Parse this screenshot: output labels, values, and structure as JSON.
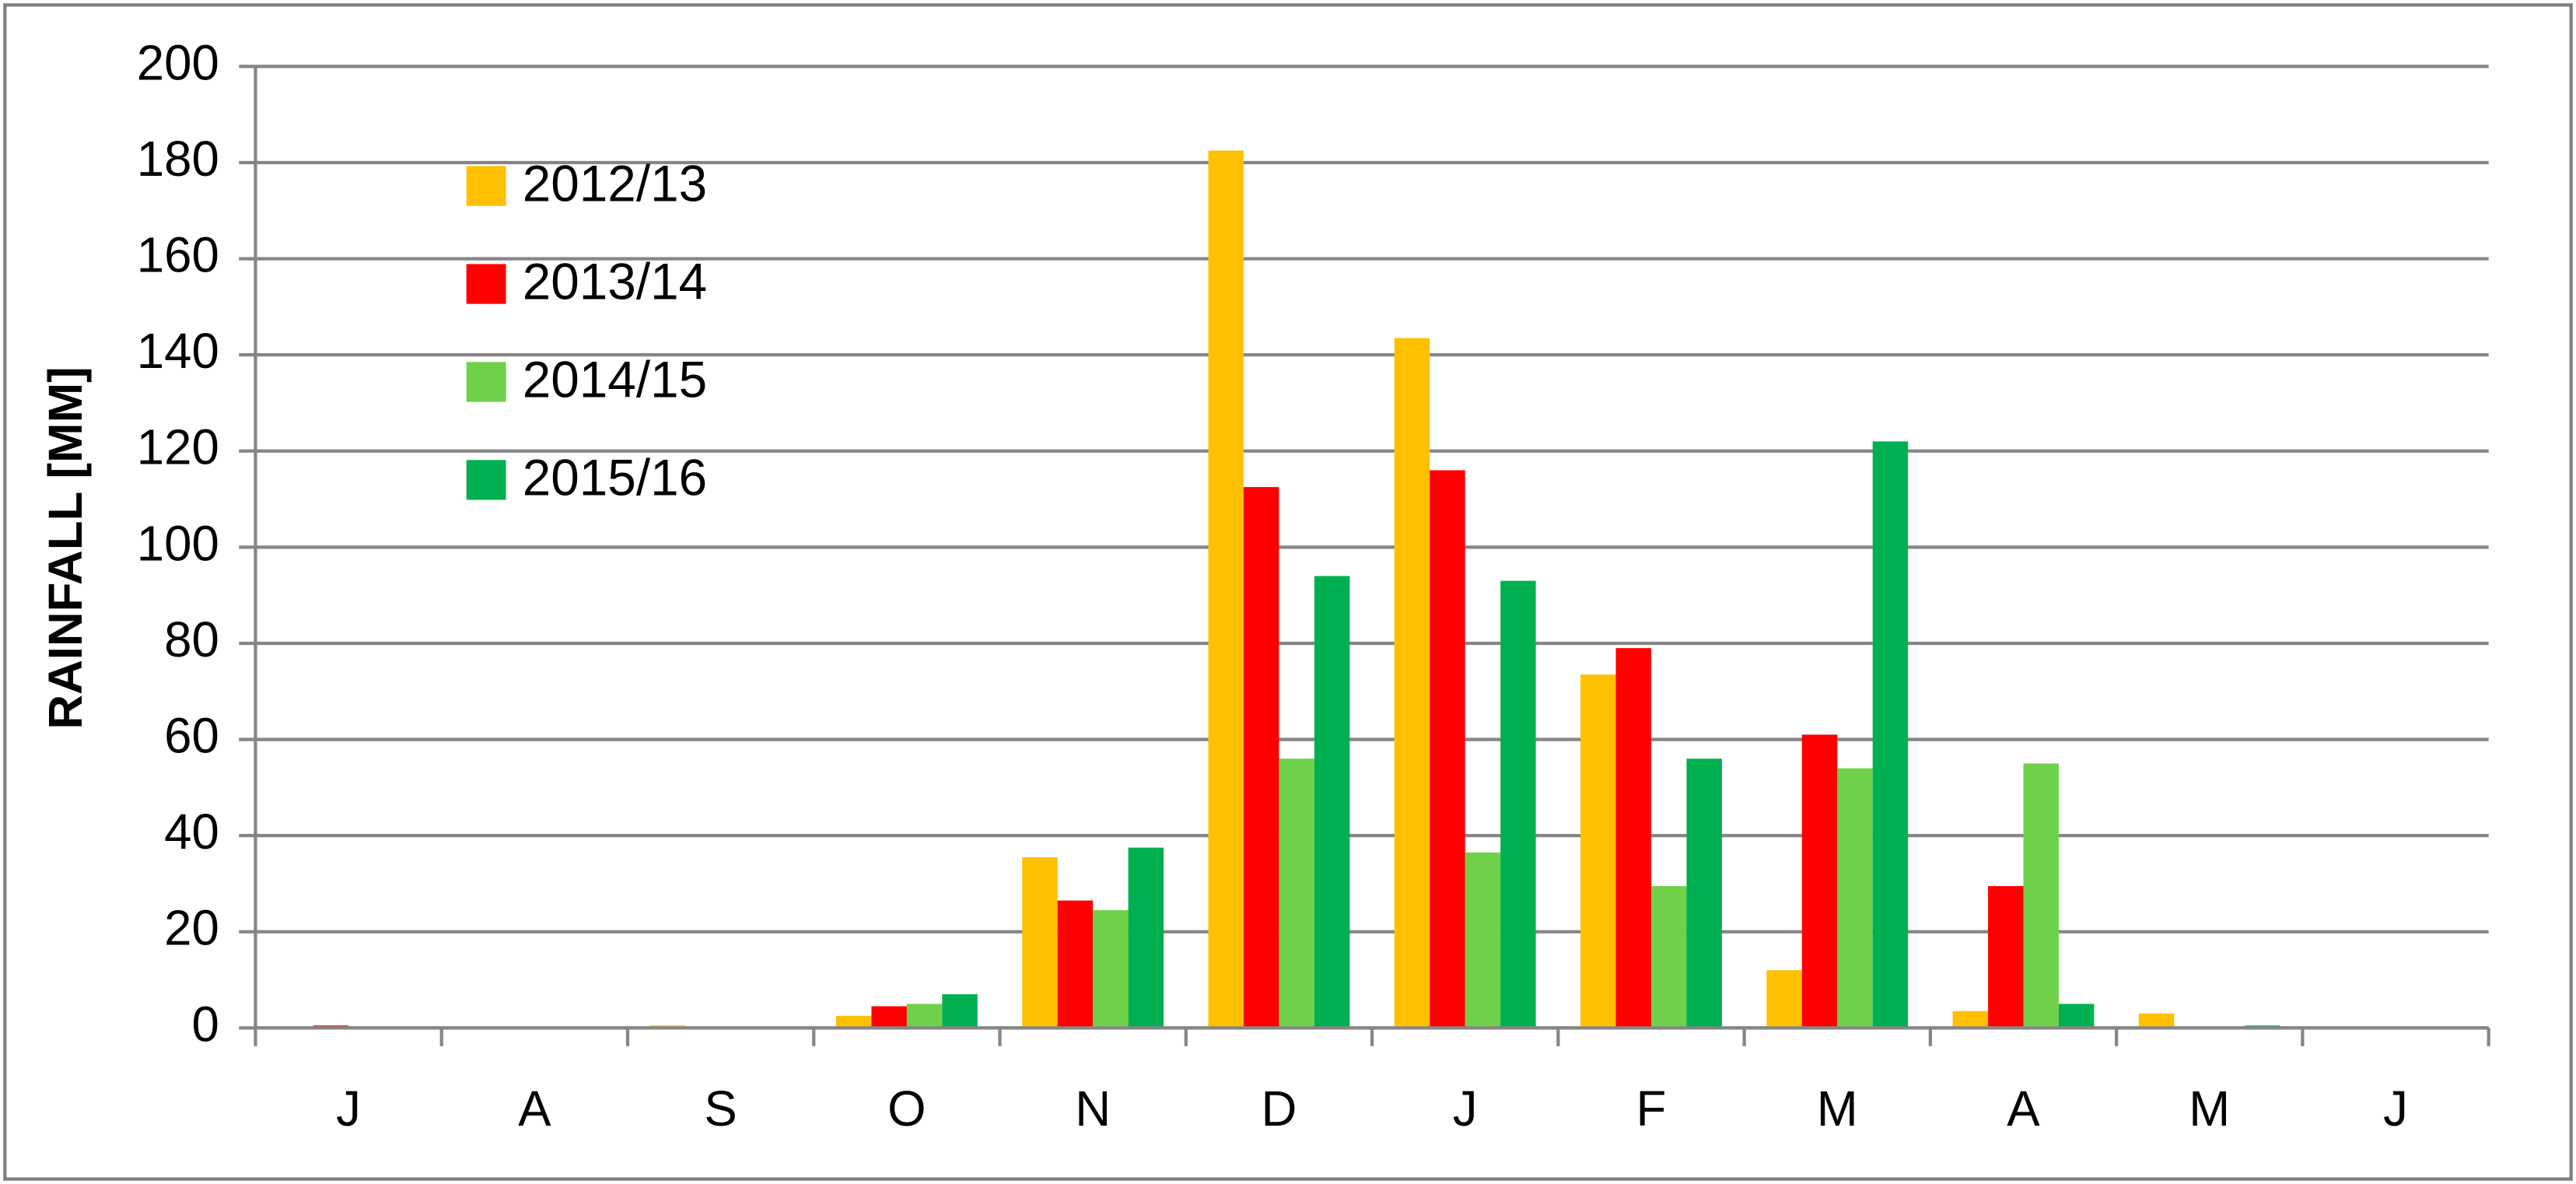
{
  "chart_data": {
    "type": "bar",
    "ylabel": "RAINFALL [MM]",
    "categories": [
      "J",
      "A",
      "S",
      "O",
      "N",
      "D",
      "J",
      "F",
      "M",
      "A",
      "M",
      "J"
    ],
    "series": [
      {
        "name": "2012/13",
        "color": "#ffc000",
        "values": [
          0,
          0,
          0.5,
          2.5,
          35.5,
          182.5,
          143.5,
          73.5,
          12,
          3.5,
          3,
          0
        ]
      },
      {
        "name": "2013/14",
        "color": "#ff0000",
        "values": [
          0.5,
          0,
          0,
          4.5,
          26.5,
          112.5,
          116,
          79,
          61,
          29.5,
          0,
          0
        ]
      },
      {
        "name": "2014/15",
        "color": "#6fd14a",
        "values": [
          0,
          0,
          0,
          5,
          24.5,
          56,
          36.5,
          29.5,
          54,
          55,
          0,
          0
        ]
      },
      {
        "name": "2015/16",
        "color": "#00b050",
        "values": [
          0,
          0,
          0,
          7,
          37.5,
          94,
          93,
          56,
          122,
          5,
          0.5,
          0
        ]
      }
    ],
    "ylim": [
      0,
      200
    ],
    "yticks": [
      0,
      20,
      40,
      60,
      80,
      100,
      120,
      140,
      160,
      180,
      200
    ],
    "grid": true,
    "legend": "upper-left"
  }
}
